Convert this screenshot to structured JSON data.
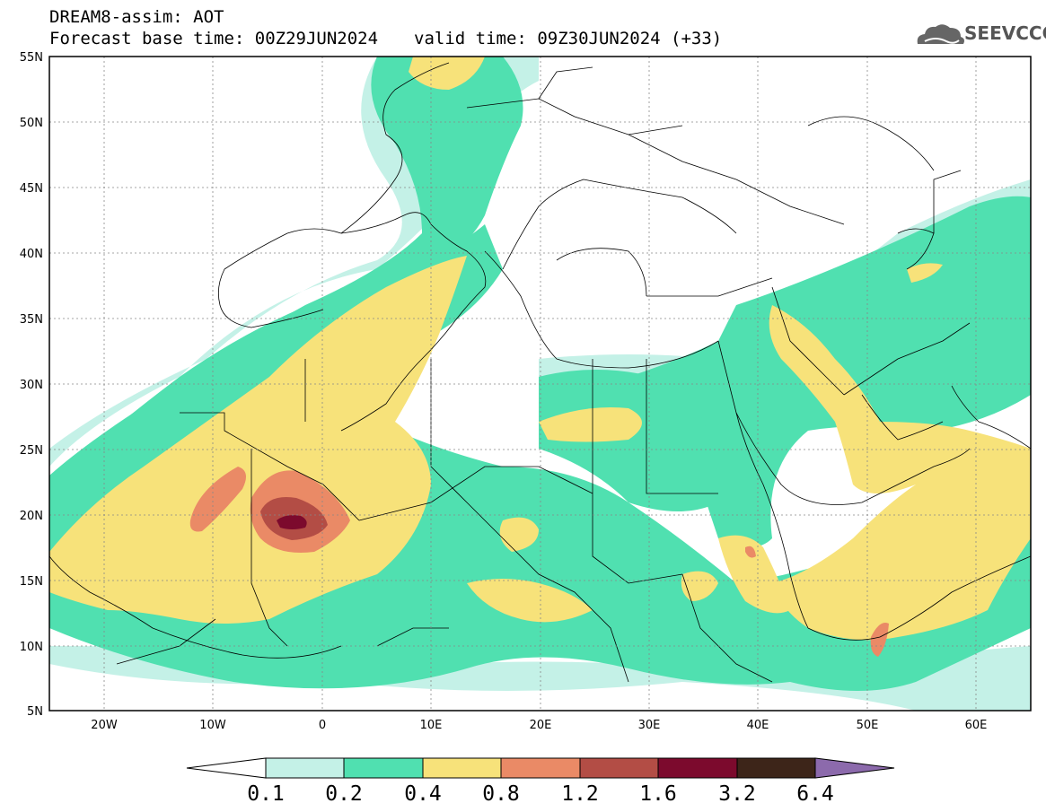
{
  "header": {
    "title": "DREAM8-assim: AOT",
    "base_time": "Forecast base time: 00Z29JUN2024",
    "valid_time": "valid time: 09Z30JUN2024 (+33)"
  },
  "logo": {
    "text": "SEEVCCC",
    "icon": "cloud-icon"
  },
  "map": {
    "lat_labels": [
      "55N",
      "50N",
      "45N",
      "40N",
      "35N",
      "30N",
      "25N",
      "20N",
      "15N",
      "10N",
      "5N"
    ],
    "lon_labels": [
      "20W",
      "10W",
      "0",
      "10E",
      "20E",
      "30E",
      "40E",
      "50E",
      "60E"
    ],
    "lon_range": [
      -25,
      65
    ],
    "lat_range": [
      5,
      55
    ],
    "grid": true
  },
  "colorbar": {
    "labels": [
      "0.1",
      "0.2",
      "0.4",
      "0.8",
      "1.2",
      "1.6",
      "3.2",
      "6.4"
    ],
    "colors": [
      "#ffffff",
      "#c4f1e7",
      "#50e0b0",
      "#f7e27a",
      "#ea8a66",
      "#b34d45",
      "#7c0a2d",
      "#3d2519",
      "#8c6aac"
    ]
  }
}
